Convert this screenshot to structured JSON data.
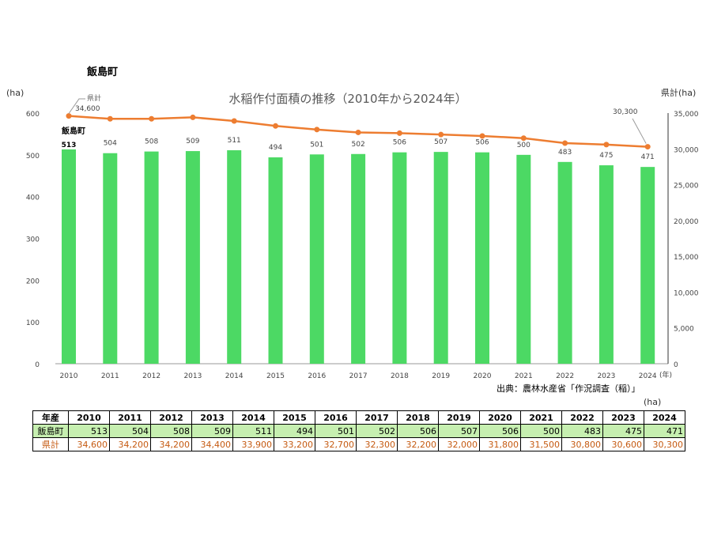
{
  "heading": "飯島町",
  "chart_data": {
    "type": "bar+line",
    "title": "水稲作付面積の推移（2010年から2024年）",
    "ylabel_left": "(ha)",
    "ylabel_right": "県計(ha)",
    "xlabel": "(年)",
    "categories": [
      "2010",
      "2011",
      "2012",
      "2013",
      "2014",
      "2015",
      "2016",
      "2017",
      "2018",
      "2019",
      "2020",
      "2021",
      "2022",
      "2023",
      "2024"
    ],
    "ylim_left": [
      0,
      600
    ],
    "yticks_left": [
      "0",
      "100",
      "200",
      "300",
      "400",
      "500",
      "600"
    ],
    "ylim_right": [
      0,
      35000
    ],
    "yticks_right": [
      "0",
      "5,000",
      "10,000",
      "15,000",
      "20,000",
      "25,000",
      "30,000",
      "35,000"
    ],
    "series": [
      {
        "name": "飯島町",
        "type": "bar",
        "color": "#4cd964",
        "axis": "left",
        "values": [
          513,
          504,
          508,
          509,
          511,
          494,
          501,
          502,
          506,
          507,
          506,
          500,
          483,
          475,
          471
        ]
      },
      {
        "name": "県計",
        "type": "line",
        "color": "#ed7d31",
        "axis": "right",
        "values": [
          34600,
          34200,
          34200,
          34400,
          33900,
          33200,
          32700,
          32300,
          32200,
          32000,
          31800,
          31500,
          30800,
          30600,
          30300
        ]
      }
    ],
    "annotations": {
      "first_line_label": "34,600",
      "last_line_label": "30,300"
    },
    "source": "出典：農林水産省「作況調査（稲）」"
  },
  "table": {
    "unit": "(ha)",
    "header_label": "年産",
    "town_label": "飯島町",
    "pref_label": "県計",
    "pref_values": [
      "34,600",
      "34,200",
      "34,200",
      "34,400",
      "33,900",
      "33,200",
      "32,700",
      "32,300",
      "32,200",
      "32,000",
      "31,800",
      "31,500",
      "30,800",
      "30,600",
      "30,300"
    ]
  }
}
